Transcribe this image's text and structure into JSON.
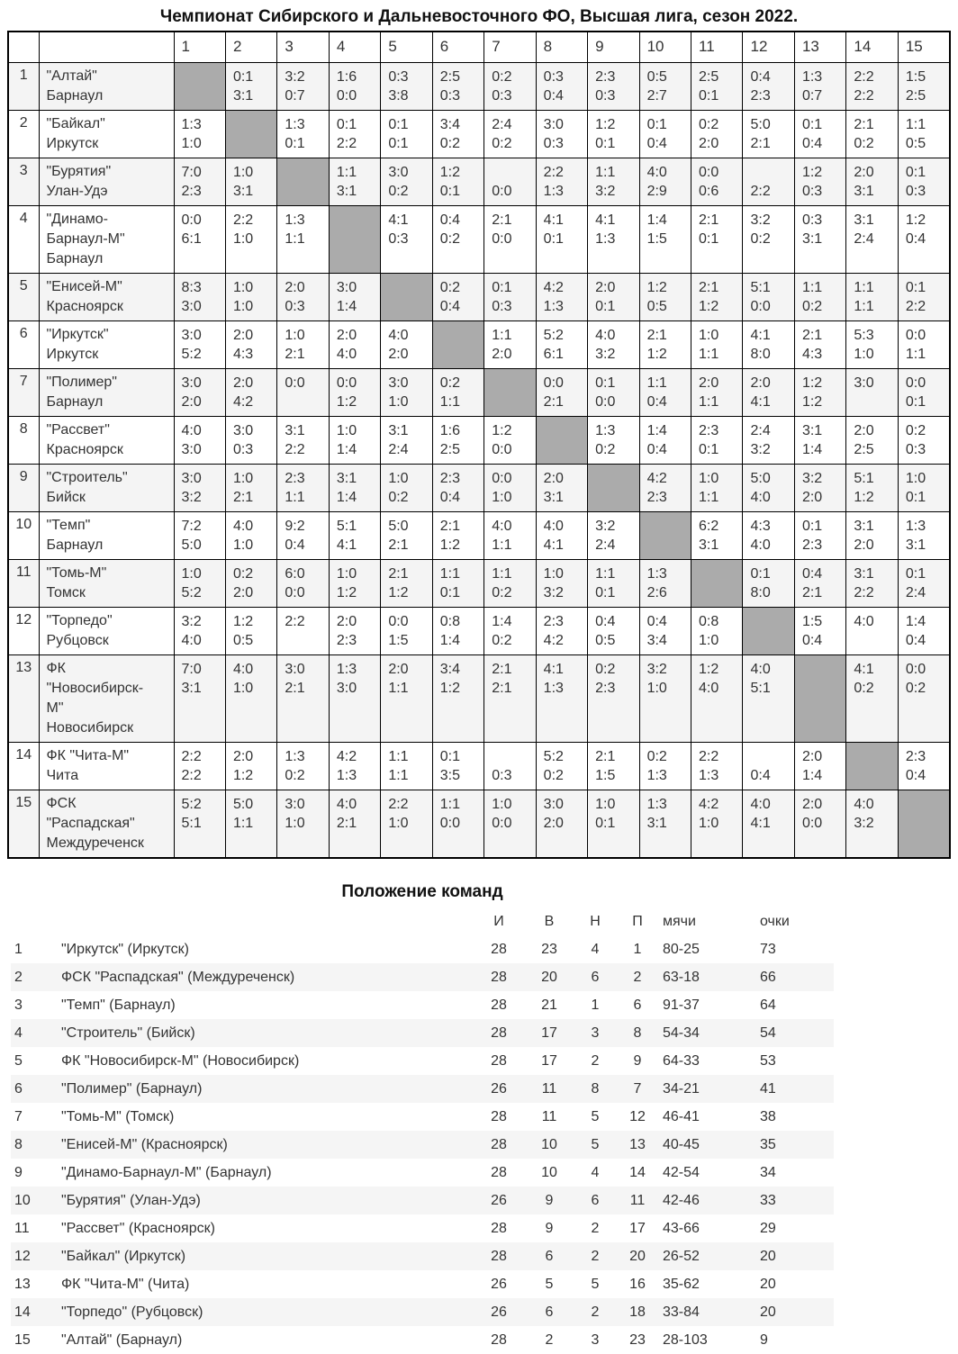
{
  "title": "Чемпионат Сибирского и Дальневосточного ФО, Высшая лига, сезон 2022.",
  "crosstable": {
    "columns": [
      "1",
      "2",
      "3",
      "4",
      "5",
      "6",
      "7",
      "8",
      "9",
      "10",
      "11",
      "12",
      "13",
      "14",
      "15"
    ],
    "rows": [
      {
        "pos": "1",
        "name": "\"Алтай\"",
        "city": "Барнаул",
        "cells": [
          null,
          [
            "0:1",
            "3:1"
          ],
          [
            "3:2",
            "0:7"
          ],
          [
            "1:6",
            "0:0"
          ],
          [
            "0:3",
            "3:8"
          ],
          [
            "2:5",
            "0:3"
          ],
          [
            "0:2",
            "0:3"
          ],
          [
            "0:3",
            "0:4"
          ],
          [
            "2:3",
            "0:3"
          ],
          [
            "0:5",
            "2:7"
          ],
          [
            "2:5",
            "0:1"
          ],
          [
            "0:4",
            "2:3"
          ],
          [
            "1:3",
            "0:7"
          ],
          [
            "2:2",
            "2:2"
          ],
          [
            "1:5",
            "2:5"
          ]
        ]
      },
      {
        "pos": "2",
        "name": "\"Байкал\"",
        "city": "Иркутск",
        "cells": [
          [
            "1:3",
            "1:0"
          ],
          null,
          [
            "1:3",
            "0:1"
          ],
          [
            "0:1",
            "2:2"
          ],
          [
            "0:1",
            "0:1"
          ],
          [
            "3:4",
            "0:2"
          ],
          [
            "2:4",
            "0:2"
          ],
          [
            "3:0",
            "0:3"
          ],
          [
            "1:2",
            "0:1"
          ],
          [
            "0:1",
            "0:4"
          ],
          [
            "0:2",
            "2:0"
          ],
          [
            "5:0",
            "2:1"
          ],
          [
            "0:1",
            "0:4"
          ],
          [
            "2:1",
            "0:2"
          ],
          [
            "1:1",
            "0:5"
          ]
        ]
      },
      {
        "pos": "3",
        "name": "\"Бурятия\"",
        "city": "Улан-Удэ",
        "cells": [
          [
            "7:0",
            "2:3"
          ],
          [
            "1:0",
            "3:1"
          ],
          null,
          [
            "1:1",
            "3:1"
          ],
          [
            "3:0",
            "0:2"
          ],
          [
            "1:2",
            "0:1"
          ],
          [
            "",
            "0:0"
          ],
          [
            "2:2",
            "1:3"
          ],
          [
            "1:1",
            "3:2"
          ],
          [
            "4:0",
            "2:9"
          ],
          [
            "0:0",
            "0:6"
          ],
          [
            "",
            "2:2"
          ],
          [
            "1:2",
            "0:3"
          ],
          [
            "2:0",
            "3:1"
          ],
          [
            "0:1",
            "0:3"
          ]
        ]
      },
      {
        "pos": "4",
        "name": "\"Динамо-Барнаул-М\"",
        "city": "Барнаул",
        "cells": [
          [
            "0:0",
            "6:1"
          ],
          [
            "2:2",
            "1:0"
          ],
          [
            "1:3",
            "1:1"
          ],
          null,
          [
            "4:1",
            "0:3"
          ],
          [
            "0:4",
            "0:2"
          ],
          [
            "2:1",
            "0:0"
          ],
          [
            "4:1",
            "0:1"
          ],
          [
            "4:1",
            "1:3"
          ],
          [
            "1:4",
            "1:5"
          ],
          [
            "2:1",
            "0:1"
          ],
          [
            "3:2",
            "0:2"
          ],
          [
            "0:3",
            "3:1"
          ],
          [
            "3:1",
            "2:4"
          ],
          [
            "1:2",
            "0:4"
          ]
        ]
      },
      {
        "pos": "5",
        "name": "\"Енисей-М\"",
        "city": "Красноярск",
        "cells": [
          [
            "8:3",
            "3:0"
          ],
          [
            "1:0",
            "1:0"
          ],
          [
            "2:0",
            "0:3"
          ],
          [
            "3:0",
            "1:4"
          ],
          null,
          [
            "0:2",
            "0:4"
          ],
          [
            "0:1",
            "0:3"
          ],
          [
            "4:2",
            "1:3"
          ],
          [
            "2:0",
            "0:1"
          ],
          [
            "1:2",
            "0:5"
          ],
          [
            "2:1",
            "1:2"
          ],
          [
            "5:1",
            "0:0"
          ],
          [
            "1:1",
            "0:2"
          ],
          [
            "1:1",
            "1:1"
          ],
          [
            "0:1",
            "2:2"
          ]
        ]
      },
      {
        "pos": "6",
        "name": "\"Иркутск\"",
        "city": "Иркутск",
        "cells": [
          [
            "3:0",
            "5:2"
          ],
          [
            "2:0",
            "4:3"
          ],
          [
            "1:0",
            "2:1"
          ],
          [
            "2:0",
            "4:0"
          ],
          [
            "4:0",
            "2:0"
          ],
          null,
          [
            "1:1",
            "2:0"
          ],
          [
            "5:2",
            "6:1"
          ],
          [
            "4:0",
            "3:2"
          ],
          [
            "2:1",
            "1:2"
          ],
          [
            "1:0",
            "1:1"
          ],
          [
            "4:1",
            "8:0"
          ],
          [
            "2:1",
            "4:3"
          ],
          [
            "5:3",
            "1:0"
          ],
          [
            "0:0",
            "1:1"
          ]
        ]
      },
      {
        "pos": "7",
        "name": "\"Полимер\"",
        "city": "Барнаул",
        "cells": [
          [
            "3:0",
            "2:0"
          ],
          [
            "2:0",
            "4:2"
          ],
          [
            "0:0",
            ""
          ],
          [
            "0:0",
            "1:2"
          ],
          [
            "3:0",
            "1:0"
          ],
          [
            "0:2",
            "1:1"
          ],
          null,
          [
            "0:0",
            "2:1"
          ],
          [
            "0:1",
            "0:0"
          ],
          [
            "1:1",
            "0:4"
          ],
          [
            "2:0",
            "1:1"
          ],
          [
            "2:0",
            "4:1"
          ],
          [
            "1:2",
            "1:2"
          ],
          [
            "3:0",
            ""
          ],
          [
            "0:0",
            "0:1"
          ]
        ]
      },
      {
        "pos": "8",
        "name": "\"Рассвет\"",
        "city": "Красноярск",
        "cells": [
          [
            "4:0",
            "3:0"
          ],
          [
            "3:0",
            "0:3"
          ],
          [
            "3:1",
            "2:2"
          ],
          [
            "1:0",
            "1:4"
          ],
          [
            "3:1",
            "2:4"
          ],
          [
            "1:6",
            "2:5"
          ],
          [
            "1:2",
            "0:0"
          ],
          null,
          [
            "1:3",
            "0:2"
          ],
          [
            "1:4",
            "0:4"
          ],
          [
            "2:3",
            "0:1"
          ],
          [
            "2:4",
            "3:2"
          ],
          [
            "3:1",
            "1:4"
          ],
          [
            "2:0",
            "2:5"
          ],
          [
            "0:2",
            "0:3"
          ]
        ]
      },
      {
        "pos": "9",
        "name": "\"Строитель\"",
        "city": "Бийск",
        "cells": [
          [
            "3:0",
            "3:2"
          ],
          [
            "1:0",
            "2:1"
          ],
          [
            "2:3",
            "1:1"
          ],
          [
            "3:1",
            "1:4"
          ],
          [
            "1:0",
            "0:2"
          ],
          [
            "2:3",
            "0:4"
          ],
          [
            "0:0",
            "1:0"
          ],
          [
            "2:0",
            "3:1"
          ],
          null,
          [
            "4:2",
            "2:3"
          ],
          [
            "1:0",
            "1:1"
          ],
          [
            "5:0",
            "4:0"
          ],
          [
            "3:2",
            "2:0"
          ],
          [
            "5:1",
            "1:2"
          ],
          [
            "1:0",
            "0:1"
          ]
        ]
      },
      {
        "pos": "10",
        "name": "\"Темп\"",
        "city": "Барнаул",
        "cells": [
          [
            "7:2",
            "5:0"
          ],
          [
            "4:0",
            "1:0"
          ],
          [
            "9:2",
            "0:4"
          ],
          [
            "5:1",
            "4:1"
          ],
          [
            "5:0",
            "2:1"
          ],
          [
            "2:1",
            "1:2"
          ],
          [
            "4:0",
            "1:1"
          ],
          [
            "4:0",
            "4:1"
          ],
          [
            "3:2",
            "2:4"
          ],
          null,
          [
            "6:2",
            "3:1"
          ],
          [
            "4:3",
            "4:0"
          ],
          [
            "0:1",
            "2:3"
          ],
          [
            "3:1",
            "2:0"
          ],
          [
            "1:3",
            "3:1"
          ]
        ]
      },
      {
        "pos": "11",
        "name": "\"Томь-М\"",
        "city": "Томск",
        "cells": [
          [
            "1:0",
            "5:2"
          ],
          [
            "0:2",
            "2:0"
          ],
          [
            "6:0",
            "0:0"
          ],
          [
            "1:0",
            "1:2"
          ],
          [
            "2:1",
            "1:2"
          ],
          [
            "1:1",
            "0:1"
          ],
          [
            "1:1",
            "0:2"
          ],
          [
            "1:0",
            "3:2"
          ],
          [
            "1:1",
            "0:1"
          ],
          [
            "1:3",
            "2:6"
          ],
          null,
          [
            "0:1",
            "8:0"
          ],
          [
            "0:4",
            "2:1"
          ],
          [
            "3:1",
            "2:2"
          ],
          [
            "0:1",
            "2:4"
          ]
        ]
      },
      {
        "pos": "12",
        "name": "\"Торпедо\"",
        "city": "Рубцовск",
        "cells": [
          [
            "3:2",
            "4:0"
          ],
          [
            "1:2",
            "0:5"
          ],
          [
            "2:2",
            ""
          ],
          [
            "2:0",
            "2:3"
          ],
          [
            "0:0",
            "1:5"
          ],
          [
            "0:8",
            "1:4"
          ],
          [
            "1:4",
            "0:2"
          ],
          [
            "2:3",
            "4:2"
          ],
          [
            "0:4",
            "0:5"
          ],
          [
            "0:4",
            "3:4"
          ],
          [
            "0:8",
            "1:0"
          ],
          null,
          [
            "1:5",
            "0:4"
          ],
          [
            "4:0",
            ""
          ],
          [
            "1:4",
            "0:4"
          ]
        ]
      },
      {
        "pos": "13",
        "name": "ФК \"Новосибирск-М\"",
        "city": "Новосибирск",
        "cells": [
          [
            "7:0",
            "3:1"
          ],
          [
            "4:0",
            "1:0"
          ],
          [
            "3:0",
            "2:1"
          ],
          [
            "1:3",
            "3:0"
          ],
          [
            "2:0",
            "1:1"
          ],
          [
            "3:4",
            "1:2"
          ],
          [
            "2:1",
            "2:1"
          ],
          [
            "4:1",
            "1:3"
          ],
          [
            "0:2",
            "2:3"
          ],
          [
            "3:2",
            "1:0"
          ],
          [
            "1:2",
            "4:0"
          ],
          [
            "4:0",
            "5:1"
          ],
          null,
          [
            "4:1",
            "0:2"
          ],
          [
            "0:0",
            "0:2"
          ]
        ]
      },
      {
        "pos": "14",
        "name": "ФК \"Чита-М\"",
        "city": "Чита",
        "cells": [
          [
            "2:2",
            "2:2"
          ],
          [
            "2:0",
            "1:2"
          ],
          [
            "1:3",
            "0:2"
          ],
          [
            "4:2",
            "1:3"
          ],
          [
            "1:1",
            "1:1"
          ],
          [
            "0:1",
            "3:5"
          ],
          [
            "",
            "0:3"
          ],
          [
            "5:2",
            "0:2"
          ],
          [
            "2:1",
            "1:5"
          ],
          [
            "0:2",
            "1:3"
          ],
          [
            "2:2",
            "1:3"
          ],
          [
            "",
            "0:4"
          ],
          [
            "2:0",
            "1:4"
          ],
          null,
          [
            "2:3",
            "0:4"
          ]
        ]
      },
      {
        "pos": "15",
        "name": "ФСК \"Распадская\"",
        "city": "Междуреченск",
        "cells": [
          [
            "5:2",
            "5:1"
          ],
          [
            "5:0",
            "1:1"
          ],
          [
            "3:0",
            "1:0"
          ],
          [
            "4:0",
            "2:1"
          ],
          [
            "2:2",
            "1:0"
          ],
          [
            "1:1",
            "0:0"
          ],
          [
            "1:0",
            "0:0"
          ],
          [
            "3:0",
            "2:0"
          ],
          [
            "1:0",
            "0:1"
          ],
          [
            "1:3",
            "3:1"
          ],
          [
            "4:2",
            "1:0"
          ],
          [
            "4:0",
            "4:1"
          ],
          [
            "2:0",
            "0:0"
          ],
          [
            "4:0",
            "3:2"
          ],
          null
        ]
      }
    ]
  },
  "standings": {
    "title": "Положение команд",
    "columns": [
      "И",
      "В",
      "Н",
      "П",
      "мячи",
      "очки"
    ],
    "rows": [
      {
        "pos": "1",
        "team": "\"Иркутск\" (Иркутск)",
        "i": "28",
        "v": "23",
        "n": "4",
        "p": "1",
        "goals": "80-25",
        "pts": "73"
      },
      {
        "pos": "2",
        "team": "ФСК \"Распадская\" (Междуреченск)",
        "i": "28",
        "v": "20",
        "n": "6",
        "p": "2",
        "goals": "63-18",
        "pts": "66"
      },
      {
        "pos": "3",
        "team": "\"Темп\" (Барнаул)",
        "i": "28",
        "v": "21",
        "n": "1",
        "p": "6",
        "goals": "91-37",
        "pts": "64"
      },
      {
        "pos": "4",
        "team": "\"Строитель\" (Бийск)",
        "i": "28",
        "v": "17",
        "n": "3",
        "p": "8",
        "goals": "54-34",
        "pts": "54"
      },
      {
        "pos": "5",
        "team": "ФК \"Новосибирск-М\" (Новосибирск)",
        "i": "28",
        "v": "17",
        "n": "2",
        "p": "9",
        "goals": "64-33",
        "pts": "53"
      },
      {
        "pos": "6",
        "team": "\"Полимер\" (Барнаул)",
        "i": "26",
        "v": "11",
        "n": "8",
        "p": "7",
        "goals": "34-21",
        "pts": "41"
      },
      {
        "pos": "7",
        "team": "\"Томь-М\" (Томск)",
        "i": "28",
        "v": "11",
        "n": "5",
        "p": "12",
        "goals": "46-41",
        "pts": "38"
      },
      {
        "pos": "8",
        "team": "\"Енисей-М\" (Красноярск)",
        "i": "28",
        "v": "10",
        "n": "5",
        "p": "13",
        "goals": "40-45",
        "pts": "35"
      },
      {
        "pos": "9",
        "team": "\"Динамо-Барнаул-М\" (Барнаул)",
        "i": "28",
        "v": "10",
        "n": "4",
        "p": "14",
        "goals": "42-54",
        "pts": "34"
      },
      {
        "pos": "10",
        "team": "\"Бурятия\" (Улан-Удэ)",
        "i": "26",
        "v": "9",
        "n": "6",
        "p": "11",
        "goals": "42-46",
        "pts": "33"
      },
      {
        "pos": "11",
        "team": "\"Рассвет\" (Красноярск)",
        "i": "28",
        "v": "9",
        "n": "2",
        "p": "17",
        "goals": "43-66",
        "pts": "29"
      },
      {
        "pos": "12",
        "team": "\"Байкал\" (Иркутск)",
        "i": "28",
        "v": "6",
        "n": "2",
        "p": "20",
        "goals": "26-52",
        "pts": "20"
      },
      {
        "pos": "13",
        "team": "ФК \"Чита-М\" (Чита)",
        "i": "26",
        "v": "5",
        "n": "5",
        "p": "16",
        "goals": "35-62",
        "pts": "20"
      },
      {
        "pos": "14",
        "team": "\"Торпедо\" (Рубцовск)",
        "i": "26",
        "v": "6",
        "n": "2",
        "p": "18",
        "goals": "33-84",
        "pts": "20"
      },
      {
        "pos": "15",
        "team": "\"Алтай\" (Барнаул)",
        "i": "28",
        "v": "2",
        "n": "3",
        "p": "23",
        "goals": "28-103",
        "pts": "9"
      }
    ]
  }
}
